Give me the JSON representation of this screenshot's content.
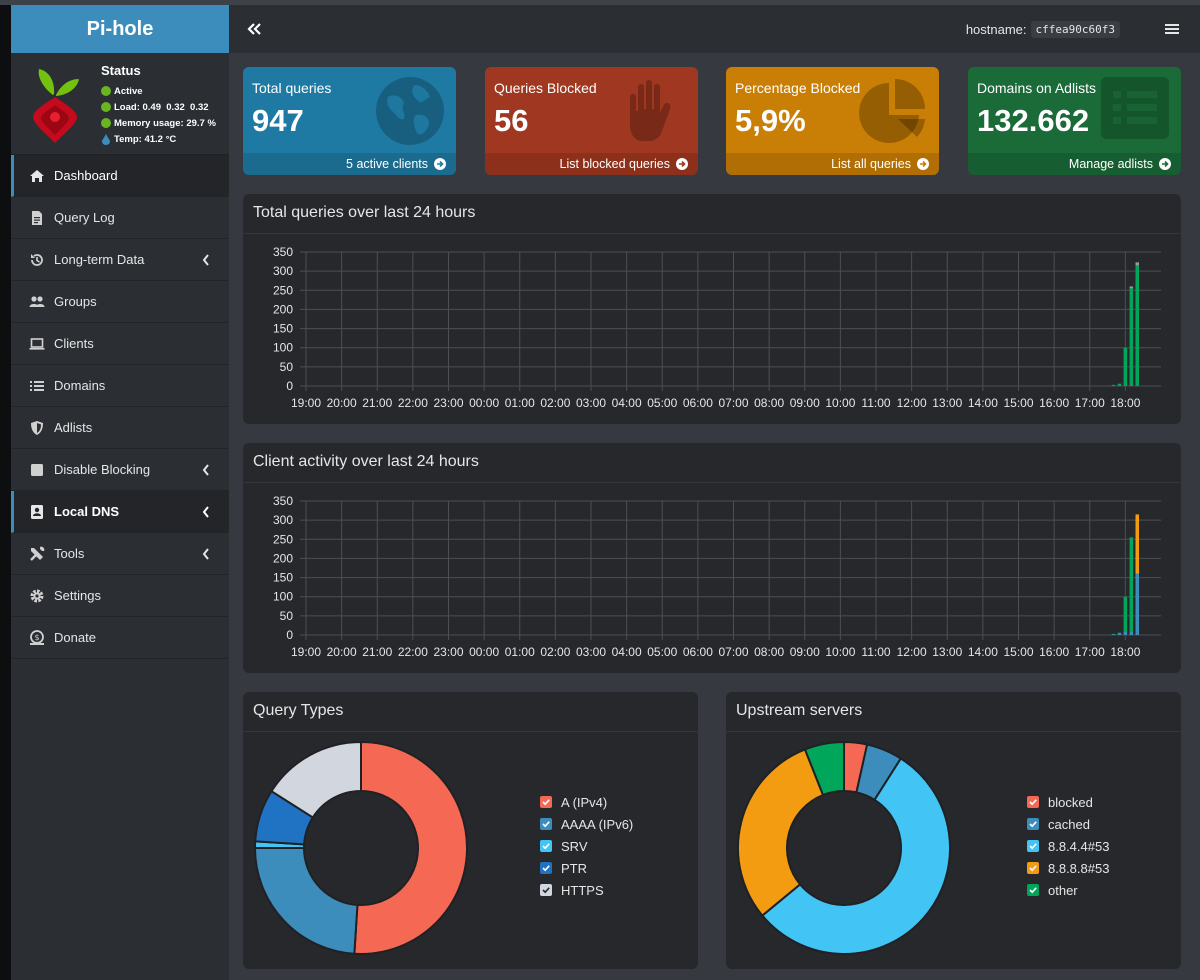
{
  "brand": {
    "name": "Pi-hole"
  },
  "status": {
    "title": "Status",
    "active": "Active",
    "load_label": "Load:",
    "load_values": "0.49  0.32  0.32",
    "memory_label": "Memory usage:",
    "memory_value": "29.7 %",
    "temp_label": "Temp:",
    "temp_value": "41.2 °C"
  },
  "sidebar": {
    "items": [
      {
        "label": "Dashboard",
        "icon": "home-icon"
      },
      {
        "label": "Query Log",
        "icon": "file-icon"
      },
      {
        "label": "Long-term Data",
        "icon": "history-icon"
      },
      {
        "label": "Groups",
        "icon": "users-icon"
      },
      {
        "label": "Clients",
        "icon": "laptop-icon"
      },
      {
        "label": "Domains",
        "icon": "list-icon"
      },
      {
        "label": "Adlists",
        "icon": "shield-icon"
      },
      {
        "label": "Disable Blocking",
        "icon": "stop-icon"
      },
      {
        "label": "Local DNS",
        "icon": "address-card-icon"
      },
      {
        "label": "Tools",
        "icon": "tools-icon"
      },
      {
        "label": "Settings",
        "icon": "gear-icon"
      },
      {
        "label": "Donate",
        "icon": "donate-icon"
      }
    ]
  },
  "header": {
    "hostname_label": "hostname:",
    "hostname_value": "cffea90c60f3"
  },
  "stats": [
    {
      "title": "Total queries",
      "value": "947",
      "link": "5 active clients",
      "color": "#1f7aa3",
      "icon": "globe-icon"
    },
    {
      "title": "Queries Blocked",
      "value": "56",
      "link": "List blocked queries",
      "color": "#a03720",
      "icon": "hand-icon"
    },
    {
      "title": "Percentage Blocked",
      "value": "5,9%",
      "link": "List all queries",
      "color": "#c97e05",
      "icon": "pie-icon"
    },
    {
      "title": "Domains on Adlists",
      "value": "132.662",
      "link": "Manage adlists",
      "color": "#1a6b38",
      "icon": "list-alt-icon"
    }
  ],
  "chart_data": [
    {
      "type": "bar",
      "title": "Total queries over last 24 hours",
      "ylim": [
        0,
        350
      ],
      "yticks": [
        0,
        50,
        100,
        150,
        200,
        250,
        300,
        350
      ],
      "xticks": [
        "19:00",
        "20:00",
        "21:00",
        "22:00",
        "23:00",
        "00:00",
        "01:00",
        "02:00",
        "03:00",
        "04:00",
        "05:00",
        "06:00",
        "07:00",
        "08:00",
        "09:00",
        "10:00",
        "11:00",
        "12:00",
        "13:00",
        "14:00",
        "15:00",
        "16:00",
        "17:00",
        "18:00"
      ],
      "series": [
        {
          "color": "#00a65a",
          "values": [
            3,
            6,
            100,
            255,
            315
          ]
        },
        {
          "color": "#999999",
          "values": [
            0,
            0,
            0,
            5,
            8
          ]
        }
      ],
      "x": [
        "17:40",
        "17:50",
        "18:00",
        "18:10",
        "18:20"
      ],
      "grid": true
    },
    {
      "type": "bar",
      "title": "Client activity over last 24 hours",
      "ylim": [
        0,
        350
      ],
      "yticks": [
        0,
        50,
        100,
        150,
        200,
        250,
        300,
        350
      ],
      "xticks": [
        "19:00",
        "20:00",
        "21:00",
        "22:00",
        "23:00",
        "00:00",
        "01:00",
        "02:00",
        "03:00",
        "04:00",
        "05:00",
        "06:00",
        "07:00",
        "08:00",
        "09:00",
        "10:00",
        "11:00",
        "12:00",
        "13:00",
        "14:00",
        "15:00",
        "16:00",
        "17:00",
        "18:00"
      ],
      "series": [
        {
          "color": "#3c8dbc",
          "values": [
            2,
            4,
            8,
            10,
            160
          ]
        },
        {
          "color": "#00a65a",
          "values": [
            1,
            2,
            92,
            245,
            0
          ]
        },
        {
          "color": "#f39c12",
          "values": [
            0,
            0,
            0,
            0,
            155
          ]
        }
      ],
      "x": [
        "17:40",
        "17:50",
        "18:00",
        "18:10",
        "18:20"
      ],
      "grid": true
    },
    {
      "type": "pie",
      "title": "Query Types",
      "donut": true,
      "categories": [
        "A (IPv4)",
        "AAAA (IPv6)",
        "SRV",
        "PTR",
        "HTTPS"
      ],
      "colors": [
        "#f56954",
        "#3c8dbc",
        "#42c5f5",
        "#2072c2",
        "#d2d6de"
      ],
      "values": [
        51,
        24,
        1,
        8,
        16
      ]
    },
    {
      "type": "pie",
      "title": "Upstream servers",
      "donut": true,
      "categories": [
        "blocked",
        "cached",
        "8.8.4.4#53",
        "8.8.8.8#53",
        "other"
      ],
      "colors": [
        "#f56954",
        "#3c8dbc",
        "#42c5f5",
        "#f39c12",
        "#00a65a"
      ],
      "values": [
        3.5,
        5.5,
        55,
        30,
        6
      ]
    }
  ]
}
